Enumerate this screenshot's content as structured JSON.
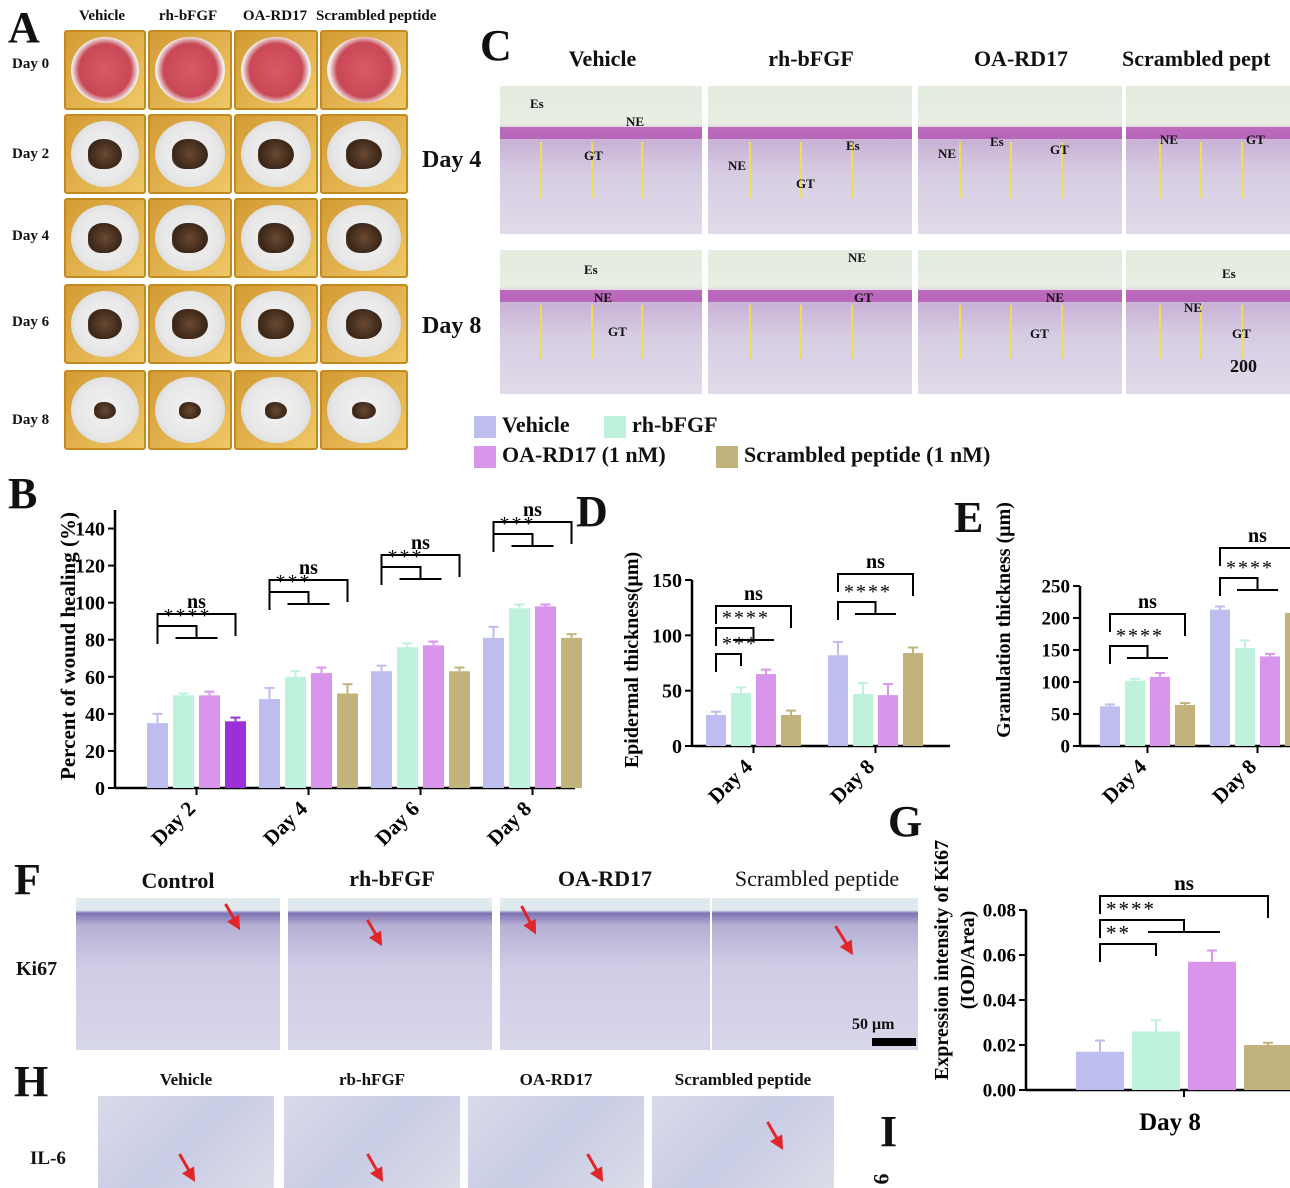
{
  "panels": {
    "A": "A",
    "B": "B",
    "C": "C",
    "D": "D",
    "E": "E",
    "F": "F",
    "G": "G",
    "H": "H",
    "I": "I"
  },
  "panelA": {
    "columns": [
      "Vehicle",
      "rh-bFGF",
      "OA-RD17",
      "Scrambled peptide"
    ],
    "rows": [
      "Day 0",
      "Day 2",
      "Day 4",
      "Day 6",
      "Day 8"
    ]
  },
  "panelC": {
    "columns": [
      "Vehicle",
      "rh-bFGF",
      "OA-RD17",
      "Scrambled pept"
    ],
    "rows": [
      "Day 4",
      "Day 8"
    ],
    "labels": {
      "es": "Es",
      "ne": "NE",
      "gt": "GT"
    },
    "scale_bar": "200"
  },
  "legend": {
    "items": [
      "Vehicle",
      "rh-bFGF",
      "OA-RD17 (1 nM)",
      "Scrambled peptide (1 nM)"
    ],
    "colors": [
      "#bdbdf0",
      "#bff2dd",
      "#d995ec",
      "#c2b27b"
    ]
  },
  "colors": {
    "vehicle": "#bdbdf0",
    "rhbfgf": "#bff2dd",
    "oard17": "#d995ec",
    "scrambled": "#c2b27b",
    "scrambled_b_day2": "#9b30d9"
  },
  "chart_data": [
    {
      "panel": "B",
      "type": "bar",
      "ylabel": "Percent of wound healing (%)",
      "ylim": [
        0,
        150
      ],
      "yticks": [
        "0",
        "20",
        "40",
        "60",
        "80",
        "100",
        "120",
        "140"
      ],
      "categories": [
        "Day 2",
        "Day 4",
        "Day 6",
        "Day 8"
      ],
      "series": [
        {
          "name": "Vehicle",
          "values": [
            35,
            48,
            63,
            81
          ],
          "errors": [
            5,
            6,
            3,
            6
          ]
        },
        {
          "name": "rh-bFGF",
          "values": [
            50,
            60,
            76,
            97
          ],
          "errors": [
            1,
            3,
            2,
            2
          ]
        },
        {
          "name": "OA-RD17 (1 nM)",
          "values": [
            50,
            62,
            77,
            98
          ],
          "errors": [
            2,
            3,
            2,
            1
          ]
        },
        {
          "name": "Scrambled peptide (1 nM)",
          "values": [
            36,
            51,
            63,
            81
          ],
          "errors": [
            2,
            5,
            2,
            2
          ]
        }
      ],
      "annotations": [
        [
          "ns",
          "****"
        ],
        [
          "ns",
          "***"
        ],
        [
          "ns",
          "***"
        ],
        [
          "ns",
          "***"
        ]
      ]
    },
    {
      "panel": "D",
      "type": "bar",
      "ylabel": "Epidermal thickness(μm)",
      "ylim": [
        0,
        150
      ],
      "yticks": [
        "0",
        "50",
        "100",
        "150"
      ],
      "categories": [
        "Day 4",
        "Day 8"
      ],
      "series": [
        {
          "name": "Vehicle",
          "values": [
            28,
            82
          ],
          "errors": [
            3,
            12
          ]
        },
        {
          "name": "rh-bFGF",
          "values": [
            48,
            47
          ],
          "errors": [
            5,
            10
          ]
        },
        {
          "name": "OA-RD17 (1 nM)",
          "values": [
            65,
            46
          ],
          "errors": [
            4,
            10
          ]
        },
        {
          "name": "Scrambled peptide (1 nM)",
          "values": [
            28,
            84
          ],
          "errors": [
            4,
            5
          ]
        }
      ],
      "annotations": [
        [
          "ns",
          "****",
          "***"
        ],
        [
          "ns",
          "****"
        ]
      ]
    },
    {
      "panel": "E",
      "type": "bar",
      "ylabel": "Granulation thickness (μm)",
      "ylim": [
        0,
        250
      ],
      "yticks": [
        "0",
        "50",
        "100",
        "150",
        "200",
        "250"
      ],
      "categories": [
        "Day 4",
        "Day 8"
      ],
      "series": [
        {
          "name": "Vehicle",
          "values": [
            62,
            213
          ],
          "errors": [
            3,
            5
          ]
        },
        {
          "name": "rh-bFGF",
          "values": [
            102,
            153
          ],
          "errors": [
            3,
            12
          ]
        },
        {
          "name": "OA-RD17 (1 nM)",
          "values": [
            108,
            140
          ],
          "errors": [
            6,
            4
          ]
        },
        {
          "name": "Scrambled peptide (1 nM)",
          "values": [
            64,
            208
          ],
          "errors": [
            3,
            5
          ]
        }
      ],
      "annotations": [
        [
          "ns",
          "****"
        ],
        [
          "ns",
          "****"
        ]
      ]
    },
    {
      "panel": "G",
      "type": "bar",
      "ylabel": "Expression intensity of Ki67 (IOD/Area)",
      "ylim": [
        0,
        0.08
      ],
      "yticks": [
        "0.00",
        "0.02",
        "0.04",
        "0.06",
        "0.08"
      ],
      "categories": [
        "Day 8"
      ],
      "series": [
        {
          "name": "Vehicle",
          "values": [
            0.017
          ],
          "errors": [
            0.005
          ]
        },
        {
          "name": "rh-bFGF",
          "values": [
            0.026
          ],
          "errors": [
            0.005
          ]
        },
        {
          "name": "OA-RD17 (1 nM)",
          "values": [
            0.057
          ],
          "errors": [
            0.005
          ]
        },
        {
          "name": "Scrambled peptide (1 nM)",
          "values": [
            0.02
          ],
          "errors": [
            0.001
          ]
        }
      ],
      "annotations": [
        [
          "ns",
          "****",
          "**"
        ]
      ]
    }
  ],
  "panelF": {
    "columns": [
      "Control",
      "rh-bFGF",
      "OA-RD17",
      "Scrambled peptide"
    ],
    "row": "Ki67",
    "scale_bar": "50 μm"
  },
  "panelH": {
    "columns": [
      "Vehicle",
      "rb-hFGF",
      "OA-RD17",
      "Scrambled peptide"
    ],
    "row": "IL-6"
  },
  "panelI": {
    "ylabel_fragment": "6"
  }
}
